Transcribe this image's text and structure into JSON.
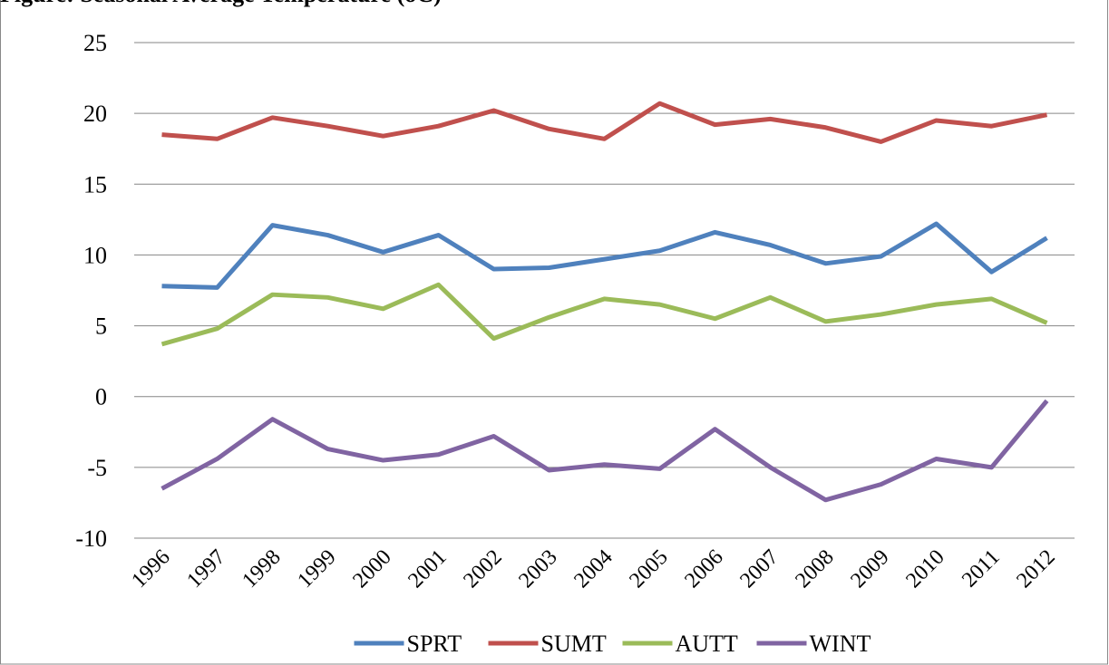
{
  "chart_data": {
    "type": "line",
    "title": "Figure: Seasonal Average Temperature (oC)",
    "categories": [
      "1996",
      "1997",
      "1998",
      "1999",
      "2000",
      "2001",
      "2002",
      "2003",
      "2004",
      "2005",
      "2006",
      "2007",
      "2008",
      "2009",
      "2010",
      "2011",
      "2012"
    ],
    "series": [
      {
        "name": "SPRT",
        "color": "#4f81bd",
        "values": [
          7.8,
          7.7,
          12.1,
          11.4,
          10.2,
          11.4,
          9.0,
          9.1,
          9.7,
          10.3,
          11.6,
          10.7,
          9.4,
          9.9,
          12.2,
          8.8,
          11.2
        ]
      },
      {
        "name": "SUMT",
        "color": "#c0504d",
        "values": [
          18.5,
          18.2,
          19.7,
          19.1,
          18.4,
          19.1,
          20.2,
          18.9,
          18.2,
          20.7,
          19.2,
          19.6,
          19.0,
          18.0,
          19.5,
          19.1,
          19.9
        ]
      },
      {
        "name": "AUTT",
        "color": "#9bbb59",
        "values": [
          3.7,
          4.8,
          7.2,
          7.0,
          6.2,
          7.9,
          4.1,
          5.6,
          6.9,
          6.5,
          5.5,
          7.0,
          5.3,
          5.8,
          6.5,
          6.9,
          5.2
        ]
      },
      {
        "name": "WINT",
        "color": "#8064a2",
        "values": [
          -6.5,
          -4.4,
          -1.6,
          -3.7,
          -4.5,
          -4.1,
          -2.8,
          -5.2,
          -4.8,
          -5.1,
          -2.3,
          -5.0,
          -7.3,
          -6.2,
          -4.4,
          -5.0,
          -0.3
        ]
      }
    ],
    "ylim": [
      -10,
      25
    ],
    "yticks": [
      -10,
      -5,
      0,
      5,
      10,
      15,
      20,
      25
    ],
    "grid": true,
    "legend": "bottom"
  }
}
